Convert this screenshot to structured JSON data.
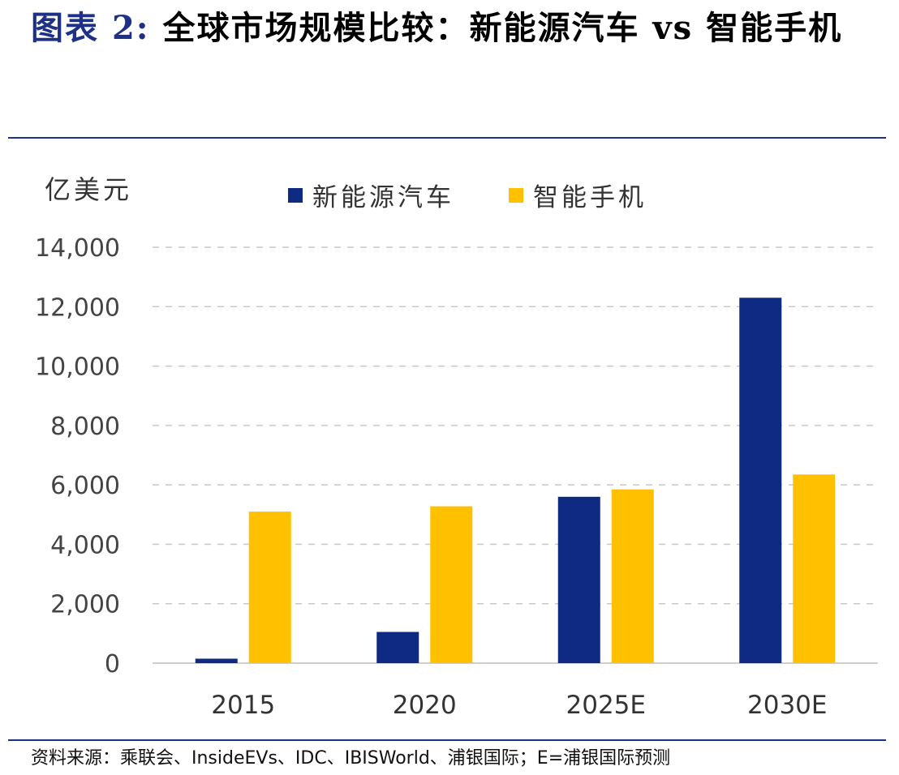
{
  "header": {
    "fig_label": "图表",
    "fig_num": "2",
    "title_text": "全球市场规模比较：新能源汽车 vs 智能手机"
  },
  "source_note": "资料来源：乘联会、InsideEVs、IDC、IBISWorld、浦银国际；E=浦银国际预测",
  "colors": {
    "accent": "#1f3187",
    "series_nev": "#0f2a82",
    "series_phone": "#ffc000",
    "grid": "#c8c8c8"
  },
  "chart_data": {
    "type": "bar",
    "title": "全球市场规模比较：新能源汽车 vs 智能手机",
    "ylabel": "亿美元",
    "xlabel": "",
    "categories": [
      "2015",
      "2020",
      "2025E",
      "2030E"
    ],
    "series": [
      {
        "name": "新能源汽车",
        "values": [
          150,
          1050,
          5600,
          12300
        ]
      },
      {
        "name": "智能手机",
        "values": [
          5100,
          5280,
          5850,
          6350
        ]
      }
    ],
    "ylim": [
      0,
      14000
    ],
    "yticks": [
      0,
      2000,
      4000,
      6000,
      8000,
      10000,
      12000,
      14000
    ],
    "ytick_labels": [
      "0",
      "2,000",
      "4,000",
      "6,000",
      "8,000",
      "10,000",
      "12,000",
      "14,000"
    ],
    "grid": true,
    "legend_position": "top-center"
  }
}
